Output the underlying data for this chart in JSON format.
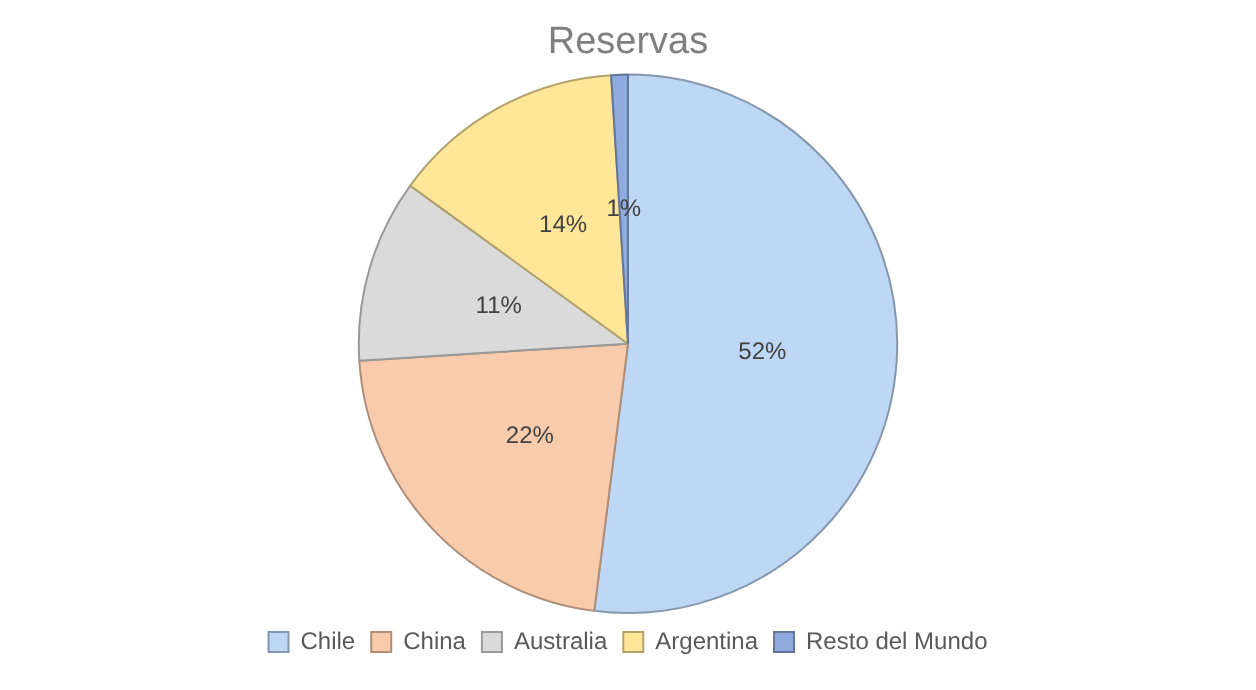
{
  "chart_data": {
    "type": "pie",
    "title": "Reservas",
    "categories": [
      "Chile",
      "China",
      "Australia",
      "Argentina",
      "Resto del Mundo"
    ],
    "values": [
      52,
      22,
      11,
      14,
      1
    ],
    "colors": [
      "#bdd7f5",
      "#f8cbad",
      "#dadada",
      "#ffe699",
      "#8faadc"
    ],
    "value_labels": [
      "52%",
      "22%",
      "11%",
      "14%",
      "1%"
    ],
    "legend": "bottom"
  }
}
